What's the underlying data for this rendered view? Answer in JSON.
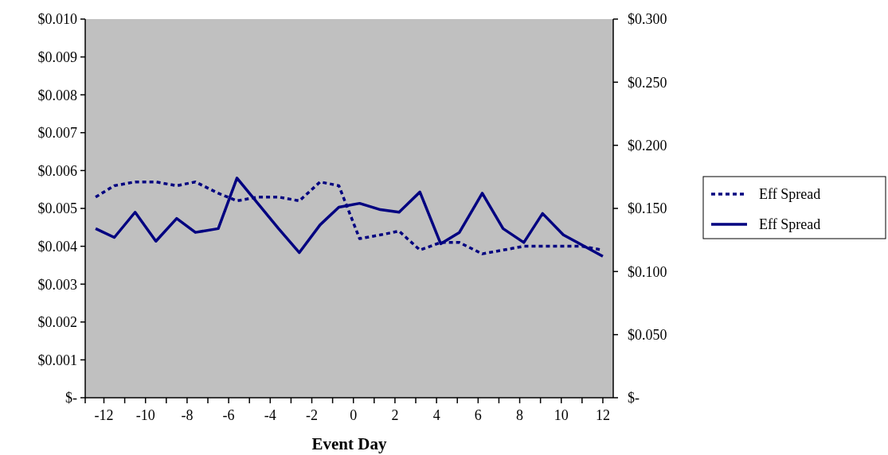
{
  "chart_data": {
    "type": "line",
    "xlabel": "Event Day",
    "x": [
      -12.4,
      -11.5,
      -10.5,
      -9.5,
      -8.5,
      -7.6,
      -6.5,
      -5.6,
      -4.6,
      -3.6,
      -2.6,
      -1.6,
      -0.7,
      0.3,
      1.3,
      2.2,
      3.2,
      4.2,
      5.1,
      6.2,
      7.2,
      8.2,
      9.1,
      10.1,
      11.0,
      12.0
    ],
    "series": [
      {
        "name": "Eff Spread",
        "color": "#000080",
        "line_style": "dotted",
        "values": [
          0.0053,
          0.0056,
          0.0057,
          0.0057,
          0.0056,
          0.0057,
          0.0054,
          0.0052,
          0.0053,
          0.0053,
          0.0052,
          0.0057,
          0.0056,
          0.0042,
          0.0043,
          0.0044,
          0.0039,
          0.0041,
          0.0041,
          0.0038,
          0.0039,
          0.004,
          0.004,
          0.004,
          0.004,
          0.0039
        ]
      },
      {
        "name": "Eff Spread",
        "color": "#000080",
        "line_style": "solid",
        "axis": "y2",
        "values": [
          0.134,
          0.127,
          0.147,
          0.124,
          0.142,
          0.131,
          0.134,
          0.174,
          0.154,
          0.134,
          0.115,
          0.137,
          0.151,
          0.154,
          0.149,
          0.147,
          0.163,
          0.122,
          0.131,
          0.162,
          0.134,
          0.123,
          0.146,
          0.129,
          0.121,
          0.112
        ]
      }
    ],
    "xlim": [
      -12.9,
      12.5
    ],
    "xticks": [
      -12,
      {
        "value": -11,
        "label": null
      },
      -10,
      {
        "value": -9,
        "label": null
      },
      -8,
      {
        "value": -7,
        "label": null
      },
      -6,
      {
        "value": -5,
        "label": null
      },
      -4,
      {
        "value": -3,
        "label": null
      },
      -2,
      {
        "value": -1,
        "label": null
      },
      0,
      {
        "value": 1,
        "label": null
      },
      2,
      {
        "value": 3,
        "label": null
      },
      4,
      {
        "value": 5,
        "label": null
      },
      6,
      {
        "value": 7,
        "label": null
      },
      8,
      {
        "value": 9,
        "label": null
      },
      10,
      {
        "value": 11,
        "label": null
      },
      12
    ],
    "ylim": [
      0,
      0.01
    ],
    "yticks": [
      {
        "value": 0,
        "label": "$-"
      },
      {
        "value": 0.001,
        "label": "$0.001"
      },
      {
        "value": 0.002,
        "label": "$0.002"
      },
      {
        "value": 0.003,
        "label": "$0.003"
      },
      {
        "value": 0.004,
        "label": "$0.004"
      },
      {
        "value": 0.005,
        "label": "$0.005"
      },
      {
        "value": 0.006,
        "label": "$0.006"
      },
      {
        "value": 0.007,
        "label": "$0.007"
      },
      {
        "value": 0.008,
        "label": "$0.008"
      },
      {
        "value": 0.009,
        "label": "$0.009"
      },
      {
        "value": 0.01,
        "label": "$0.010"
      }
    ],
    "y2lim": [
      0,
      0.3
    ],
    "y2ticks": [
      {
        "value": 0,
        "label": "$-"
      },
      {
        "value": 0.05,
        "label": "$0.050"
      },
      {
        "value": 0.1,
        "label": "$0.100"
      },
      {
        "value": 0.15,
        "label": "$0.150"
      },
      {
        "value": 0.2,
        "label": "$0.200"
      },
      {
        "value": 0.25,
        "label": "$0.250"
      },
      {
        "value": 0.3,
        "label": "$0.300"
      }
    ],
    "grid": false,
    "legend": "right",
    "marker": "none"
  }
}
